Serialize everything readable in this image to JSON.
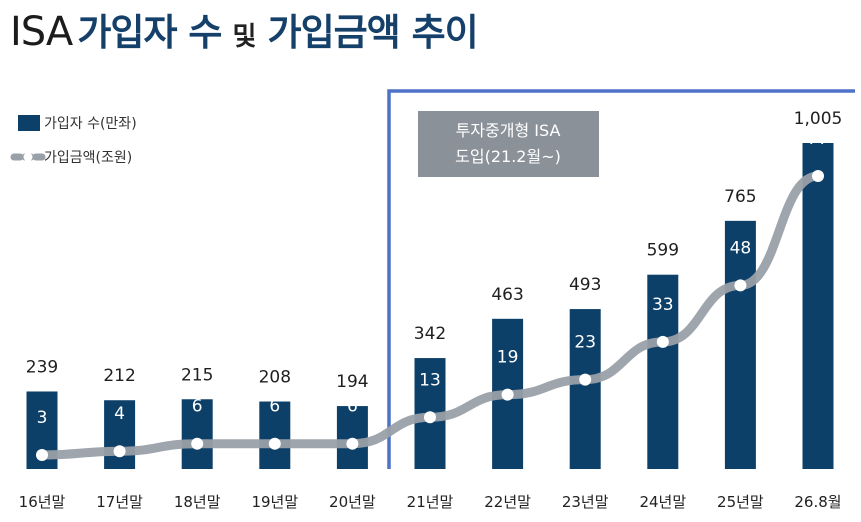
{
  "title": {
    "prefix": "ISA",
    "part1": "가입자 수",
    "conj": "및",
    "part2": "가입금액 추이"
  },
  "colors": {
    "bar": "#0d4069",
    "line": "#9aa0a8",
    "highlight_border": "#4f72c8",
    "annotation_bg": "#8b9199",
    "title_accent": "#14406a"
  },
  "annotation": {
    "line1": "투자중개형 ISA",
    "line2": "도입(21.2월~)"
  },
  "chart_data": {
    "type": "bar",
    "categories": [
      "16년말",
      "17년말",
      "18년말",
      "19년말",
      "20년말",
      "21년말",
      "22년말",
      "23년말",
      "24년말",
      "25년말",
      "26.8월"
    ],
    "series": [
      {
        "name": "가입자 수(만좌)",
        "type": "bar",
        "values": [
          239,
          212,
          215,
          208,
          194,
          342,
          463,
          493,
          599,
          765,
          1005
        ],
        "labels": [
          "239",
          "212",
          "215",
          "208",
          "194",
          "342",
          "463",
          "493",
          "599",
          "765",
          "1,005"
        ]
      },
      {
        "name": "가입금액(조원)",
        "type": "line",
        "values": [
          3,
          4,
          6,
          6,
          6,
          13,
          19,
          23,
          33,
          48,
          77
        ]
      }
    ],
    "legend_position": "top-left",
    "grid": false
  }
}
